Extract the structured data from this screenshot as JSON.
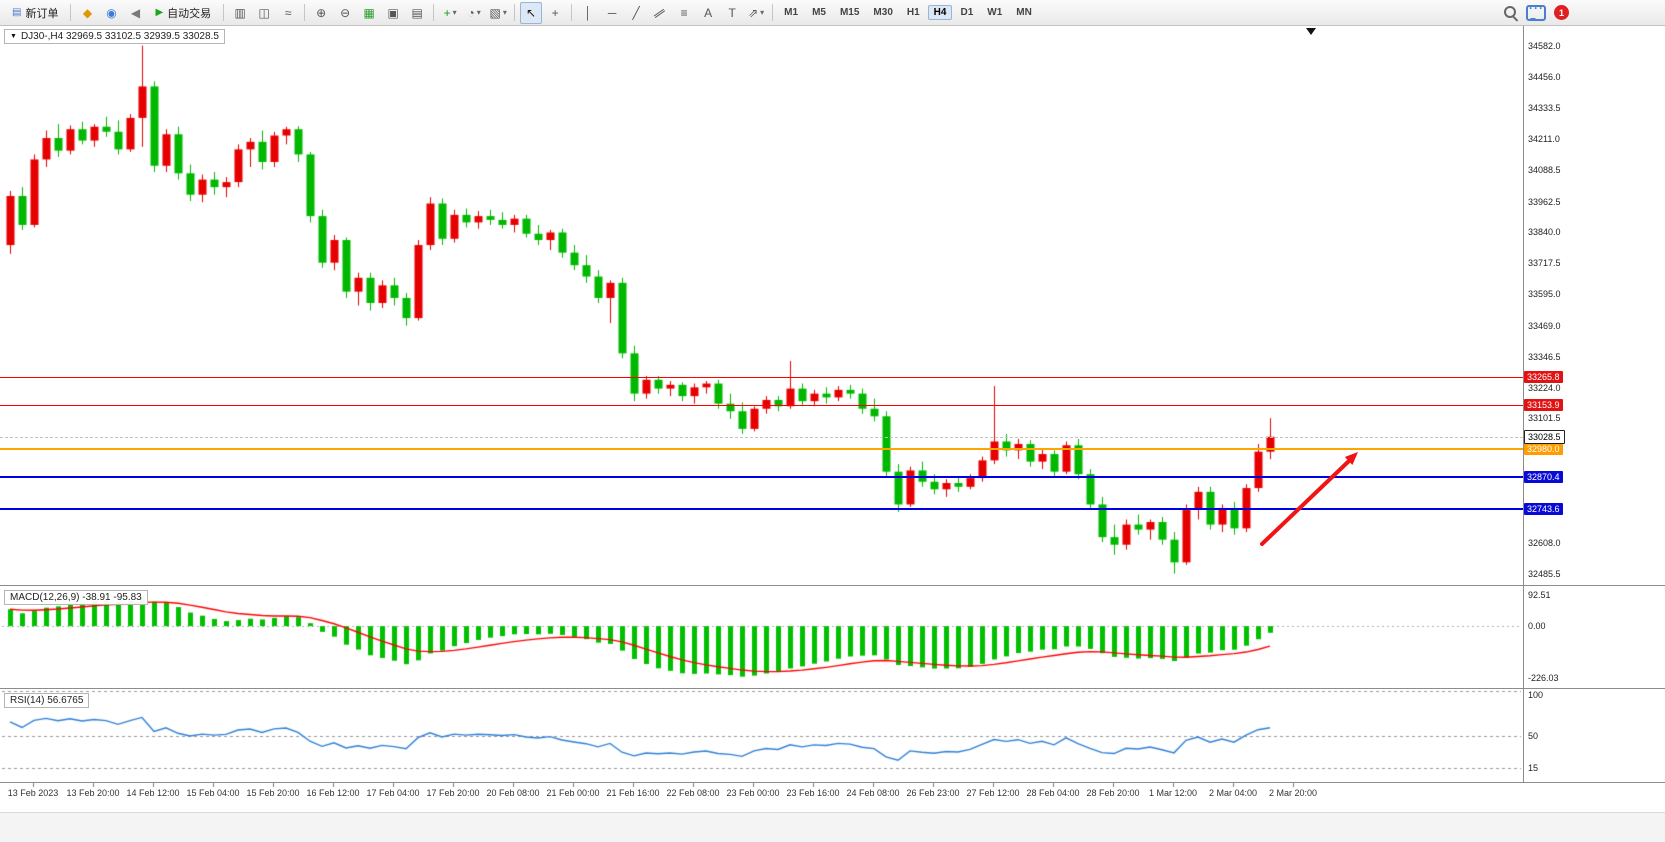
{
  "toolbar": {
    "items": [
      {
        "t": "btn",
        "name": "new-order-button",
        "glyph": "▤",
        "gcolor": "#4a78c8",
        "label": "新订单"
      },
      {
        "t": "sep"
      },
      {
        "t": "icon",
        "name": "wizard-icon",
        "glyph": "◆",
        "gcolor": "#dd9900"
      },
      {
        "t": "icon",
        "name": "community-icon",
        "glyph": "◉",
        "gcolor": "#3b7dd8"
      },
      {
        "t": "icon",
        "name": "alerts-icon",
        "glyph": "◀",
        "gcolor": "#7a7a7a"
      },
      {
        "t": "btn",
        "name": "auto-trading-button",
        "glyph": "▶",
        "gcolor": "#18a818",
        "label": "自动交易"
      },
      {
        "t": "sep"
      },
      {
        "t": "icon",
        "name": "bar-chart-icon",
        "glyph": "▥"
      },
      {
        "t": "icon",
        "name": "candlestick-chart-icon",
        "glyph": "◫"
      },
      {
        "t": "icon",
        "name": "line-chart-icon",
        "glyph": "≈"
      },
      {
        "t": "sep"
      },
      {
        "t": "icon",
        "name": "zoom-in-icon",
        "glyph": "⊕"
      },
      {
        "t": "icon",
        "name": "zoom-out-icon",
        "glyph": "⊖"
      },
      {
        "t": "icon",
        "name": "grid-icon",
        "glyph": "▦",
        "gcolor": "#2f9e2f"
      },
      {
        "t": "icon",
        "name": "cascade-windows-icon",
        "glyph": "▣"
      },
      {
        "t": "icon",
        "name": "tile-windows-icon",
        "glyph": "▤"
      },
      {
        "t": "sep"
      },
      {
        "t": "icon",
        "name": "indicators-button",
        "glyph": "+",
        "gcolor": "#1a9e1a",
        "dd": true
      },
      {
        "t": "icon",
        "name": "periods-button",
        "glyph": "◔",
        "dd": true
      },
      {
        "t": "icon",
        "name": "templates-button",
        "glyph": "▧",
        "dd": true
      },
      {
        "t": "sep"
      },
      {
        "t": "icon",
        "name": "cursor-icon",
        "glyph": "↖",
        "pressed": true
      },
      {
        "t": "icon",
        "name": "crosshair-icon",
        "glyph": "+"
      },
      {
        "t": "sep"
      },
      {
        "t": "icon",
        "name": "vertical-line-icon",
        "glyph": "│"
      },
      {
        "t": "icon",
        "name": "horizontal-line-icon",
        "glyph": "─"
      },
      {
        "t": "icon",
        "name": "trendline-icon",
        "glyph": "╱"
      },
      {
        "t": "icon",
        "name": "channel-icon",
        "glyph": "∥",
        "rot": true
      },
      {
        "t": "icon",
        "name": "fibonacci-icon",
        "glyph": "≡"
      },
      {
        "t": "icon",
        "name": "text-icon",
        "glyph": "A"
      },
      {
        "t": "icon",
        "name": "label-icon",
        "glyph": "T"
      },
      {
        "t": "icon",
        "name": "shapes-icon",
        "glyph": "⇗",
        "dd": true
      },
      {
        "t": "sep"
      }
    ],
    "timeframes": {
      "items": [
        "M1",
        "M5",
        "M15",
        "M30",
        "H1",
        "H4",
        "D1",
        "W1",
        "MN"
      ],
      "active": "H4"
    },
    "notification_count": "1"
  },
  "chart": {
    "title": "DJ30-,H4 32969.5 33102.5 32939.5 33028.5",
    "symbol": "DJ30-",
    "timeframe": "H4",
    "open": "32969.5",
    "high": "33102.5",
    "low": "32939.5",
    "close": "33028.5",
    "colors": {
      "bull": "#e60000",
      "bear": "#00b800",
      "macd_hist": "#00c000",
      "macd_signal": "#ff0000",
      "rsi_line": "#2f7fd6",
      "arrow": "#f01414"
    }
  },
  "price_scale": {
    "ticks": [
      "34582.0",
      "34456.0",
      "34333.5",
      "34211.0",
      "34088.5",
      "33962.5",
      "33840.0",
      "33717.5",
      "33595.0",
      "33469.0",
      "33346.5",
      "33224.0",
      "33101.5",
      "32608.0",
      "32485.5"
    ]
  },
  "levels": [
    {
      "name": "resistance-line-1",
      "value": 33265.8,
      "label": "33265.8",
      "type": "red"
    },
    {
      "name": "resistance-line-2",
      "value": 33153.9,
      "label": "33153.9",
      "type": "red"
    },
    {
      "name": "pivot-line",
      "value": 32980.0,
      "label": "32980.0",
      "type": "orange"
    },
    {
      "name": "support-line-1",
      "value": 32870.4,
      "label": "32870.4",
      "type": "blue"
    },
    {
      "name": "support-line-2",
      "value": 32743.6,
      "label": "32743.6",
      "type": "blue"
    }
  ],
  "current_price": {
    "value": 33028.5,
    "label": "33028.5"
  },
  "indicators": {
    "macd": {
      "label": "MACD(12,26,9) -38.91 -95.83",
      "axis": [
        "92.51",
        "0.00",
        "-226.03"
      ]
    },
    "rsi": {
      "label": "RSI(14) 56.6765",
      "axis": [
        "100",
        "50",
        "15"
      ],
      "levels": [
        100,
        50,
        15
      ]
    }
  },
  "time_axis": {
    "labels": [
      "13 Feb 2023",
      "13 Feb 20:00",
      "14 Feb 12:00",
      "15 Feb 04:00",
      "15 Feb 20:00",
      "16 Feb 12:00",
      "17 Feb 04:00",
      "17 Feb 20:00",
      "20 Feb 08:00",
      "21 Feb 00:00",
      "21 Feb 16:00",
      "22 Feb 08:00",
      "23 Feb 00:00",
      "23 Feb 16:00",
      "24 Feb 08:00",
      "26 Feb 23:00",
      "27 Feb 12:00",
      "28 Feb 04:00",
      "28 Feb 20:00",
      "1 Mar 12:00",
      "2 Mar 04:00",
      "2 Mar 20:00"
    ]
  },
  "chart_data": {
    "type": "candlestick",
    "symbol": "DJ30-",
    "period": "H4",
    "candles": [
      [
        33790,
        34005,
        33755,
        33985
      ],
      [
        33985,
        34020,
        33850,
        33870
      ],
      [
        33870,
        34150,
        33860,
        34130
      ],
      [
        34130,
        34245,
        34100,
        34215
      ],
      [
        34215,
        34270,
        34140,
        34165
      ],
      [
        34165,
        34265,
        34150,
        34250
      ],
      [
        34250,
        34280,
        34190,
        34205
      ],
      [
        34205,
        34270,
        34180,
        34260
      ],
      [
        34260,
        34300,
        34220,
        34240
      ],
      [
        34240,
        34285,
        34150,
        34170
      ],
      [
        34170,
        34310,
        34160,
        34295
      ],
      [
        34295,
        34582,
        34180,
        34420
      ],
      [
        34420,
        34440,
        34080,
        34105
      ],
      [
        34105,
        34250,
        34080,
        34230
      ],
      [
        34230,
        34260,
        34050,
        34075
      ],
      [
        34075,
        34110,
        33965,
        33990
      ],
      [
        33990,
        34070,
        33960,
        34050
      ],
      [
        34050,
        34080,
        33990,
        34020
      ],
      [
        34020,
        34060,
        33980,
        34040
      ],
      [
        34040,
        34190,
        34020,
        34170
      ],
      [
        34170,
        34215,
        34100,
        34200
      ],
      [
        34200,
        34245,
        34090,
        34120
      ],
      [
        34120,
        34240,
        34100,
        34225
      ],
      [
        34225,
        34260,
        34190,
        34250
      ],
      [
        34250,
        34262,
        34120,
        34150
      ],
      [
        34150,
        34160,
        33880,
        33905
      ],
      [
        33905,
        33930,
        33700,
        33720
      ],
      [
        33720,
        33830,
        33690,
        33810
      ],
      [
        33810,
        33820,
        33580,
        33605
      ],
      [
        33605,
        33680,
        33550,
        33660
      ],
      [
        33660,
        33680,
        33530,
        33560
      ],
      [
        33560,
        33650,
        33540,
        33630
      ],
      [
        33630,
        33660,
        33550,
        33580
      ],
      [
        33580,
        33600,
        33470,
        33500
      ],
      [
        33500,
        33810,
        33490,
        33790
      ],
      [
        33790,
        33980,
        33770,
        33955
      ],
      [
        33955,
        33975,
        33790,
        33815
      ],
      [
        33815,
        33930,
        33800,
        33910
      ],
      [
        33910,
        33935,
        33860,
        33880
      ],
      [
        33880,
        33925,
        33855,
        33905
      ],
      [
        33905,
        33930,
        33870,
        33890
      ],
      [
        33890,
        33920,
        33855,
        33870
      ],
      [
        33870,
        33910,
        33840,
        33895
      ],
      [
        33895,
        33910,
        33820,
        33835
      ],
      [
        33835,
        33870,
        33790,
        33810
      ],
      [
        33810,
        33850,
        33770,
        33840
      ],
      [
        33840,
        33855,
        33740,
        33760
      ],
      [
        33760,
        33790,
        33690,
        33710
      ],
      [
        33710,
        33750,
        33640,
        33665
      ],
      [
        33665,
        33690,
        33560,
        33580
      ],
      [
        33580,
        33650,
        33480,
        33640
      ],
      [
        33640,
        33660,
        33340,
        33360
      ],
      [
        33360,
        33390,
        33170,
        33200
      ],
      [
        33200,
        33270,
        33180,
        33255
      ],
      [
        33255,
        33270,
        33200,
        33220
      ],
      [
        33220,
        33250,
        33190,
        33235
      ],
      [
        33235,
        33245,
        33170,
        33190
      ],
      [
        33190,
        33240,
        33160,
        33225
      ],
      [
        33225,
        33250,
        33200,
        33240
      ],
      [
        33240,
        33255,
        33140,
        33160
      ],
      [
        33160,
        33200,
        33100,
        33130
      ],
      [
        33130,
        33165,
        33040,
        33060
      ],
      [
        33060,
        33150,
        33050,
        33140
      ],
      [
        33140,
        33190,
        33120,
        33175
      ],
      [
        33175,
        33190,
        33130,
        33150
      ],
      [
        33150,
        33330,
        33140,
        33220
      ],
      [
        33220,
        33240,
        33150,
        33170
      ],
      [
        33170,
        33215,
        33150,
        33200
      ],
      [
        33200,
        33225,
        33160,
        33185
      ],
      [
        33185,
        33230,
        33170,
        33215
      ],
      [
        33215,
        33235,
        33180,
        33200
      ],
      [
        33200,
        33220,
        33120,
        33140
      ],
      [
        33140,
        33180,
        33090,
        33110
      ],
      [
        33110,
        33130,
        32870,
        32890
      ],
      [
        32890,
        32920,
        32730,
        32760
      ],
      [
        32760,
        32910,
        32750,
        32895
      ],
      [
        32895,
        32930,
        32830,
        32850
      ],
      [
        32850,
        32880,
        32800,
        32820
      ],
      [
        32820,
        32860,
        32790,
        32845
      ],
      [
        32845,
        32870,
        32810,
        32830
      ],
      [
        32830,
        32880,
        32820,
        32865
      ],
      [
        32865,
        32950,
        32850,
        32935
      ],
      [
        32935,
        33230,
        32920,
        33010
      ],
      [
        33010,
        33040,
        32950,
        32975
      ],
      [
        32975,
        33020,
        32940,
        33000
      ],
      [
        33000,
        33015,
        32910,
        32930
      ],
      [
        32930,
        32980,
        32900,
        32960
      ],
      [
        32960,
        32975,
        32870,
        32890
      ],
      [
        32890,
        33010,
        32880,
        32995
      ],
      [
        32995,
        33020,
        32860,
        32880
      ],
      [
        32880,
        32900,
        32740,
        32760
      ],
      [
        32760,
        32790,
        32610,
        32630
      ],
      [
        32630,
        32680,
        32560,
        32600
      ],
      [
        32600,
        32700,
        32580,
        32680
      ],
      [
        32680,
        32720,
        32640,
        32660
      ],
      [
        32660,
        32700,
        32620,
        32690
      ],
      [
        32690,
        32710,
        32600,
        32620
      ],
      [
        32620,
        32650,
        32485,
        32530
      ],
      [
        32530,
        32760,
        32520,
        32740
      ],
      [
        32740,
        32830,
        32700,
        32810
      ],
      [
        32810,
        32830,
        32660,
        32680
      ],
      [
        32680,
        32760,
        32650,
        32745
      ],
      [
        32745,
        32770,
        32640,
        32665
      ],
      [
        32665,
        32840,
        32650,
        32825
      ],
      [
        32825,
        33000,
        32810,
        32969.5
      ],
      [
        32969.5,
        33102.5,
        32939.5,
        33028.5
      ]
    ]
  }
}
